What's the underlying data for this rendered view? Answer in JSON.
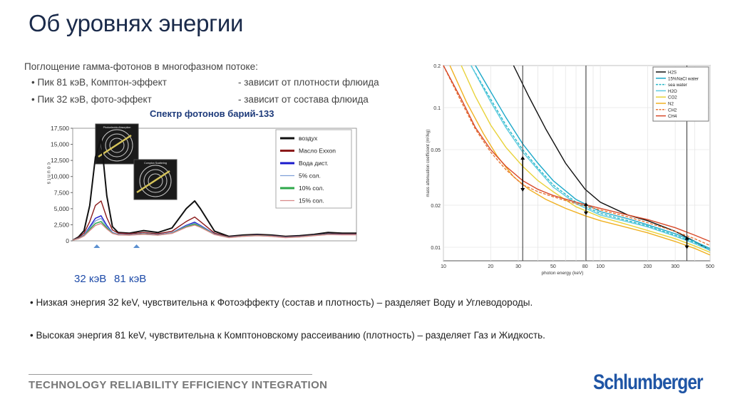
{
  "title": "Об уровнях энергии",
  "absorption": {
    "heading": "Поглощение гамма-фотонов в многофазном потоке:",
    "bullets": [
      {
        "left": "• Пик 81 кэВ, Комптон-эффект",
        "right": "- зависит от плотности флюида"
      },
      {
        "left": "• Пик 32 кэВ, фото-эффект",
        "right": "- зависит от состава флюида"
      }
    ]
  },
  "bullets": [
    "• Низкая энергия 32 keV, чувствительна к Фотоэффекту (состав и плотность) – разделяет Воду и Углеводороды.",
    "• Высокая энергия 81 keV, чувствительна к Комптоновскому рассеиванию (плотность) – разделяет Газ и Жидкость."
  ],
  "energy_labels": [
    "32 кэВ",
    "81 кэВ"
  ],
  "footer": "TECHNOLOGY RELIABILITY EFFICIENCY INTEGRATION",
  "logo": "Schlumberger",
  "chart_data": [
    {
      "type": "line",
      "title": "Спектр фотонов барий-133",
      "ylabel": "c o u n t s",
      "y_ticks": [
        "0",
        "2,500",
        "5,000",
        "7,500",
        "10,000",
        "12,500",
        "15,000",
        "17,500"
      ],
      "ylim": [
        0,
        17500
      ],
      "inset_labels": [
        "Photoelectric Absorption",
        "Compton Scattering"
      ],
      "legend": [
        {
          "name": "воздух",
          "color": "#111111"
        },
        {
          "name": "Масло Exxon",
          "color": "#8b1a1a"
        },
        {
          "name": "Вода дист.",
          "color": "#1a1acc"
        },
        {
          "name": "5% сол.",
          "color": "#7fa0d8"
        },
        {
          "name": "10% сол.",
          "color": "#2ea84a"
        },
        {
          "name": "15% сол.",
          "color": "#d98888"
        }
      ],
      "x": [
        0,
        2,
        4,
        6,
        8,
        10,
        12,
        14,
        16,
        20,
        25,
        30,
        35,
        40,
        43,
        45,
        50,
        55,
        60,
        65,
        70,
        75,
        80,
        85,
        90,
        95,
        100
      ],
      "series": [
        {
          "name": "воздух",
          "values": [
            100,
            600,
            1600,
            5500,
            13000,
            16000,
            7000,
            2200,
            1300,
            1200,
            1600,
            1300,
            2000,
            5000,
            6200,
            5000,
            1500,
            700,
            900,
            1000,
            900,
            700,
            800,
            1000,
            1300,
            1200,
            1200
          ]
        },
        {
          "name": "Масло Exxon",
          "values": [
            100,
            500,
            1200,
            3000,
            5500,
            6200,
            3600,
            1700,
            1200,
            1100,
            1300,
            1100,
            1500,
            3000,
            3700,
            3000,
            1200,
            600,
            800,
            900,
            800,
            600,
            700,
            900,
            1100,
            1050,
            1050
          ]
        },
        {
          "name": "Вода дист.",
          "values": [
            100,
            400,
            900,
            2200,
            3500,
            3900,
            2400,
            1300,
            1000,
            950,
            1100,
            950,
            1250,
            2400,
            2900,
            2400,
            1050,
            550,
            750,
            850,
            750,
            550,
            650,
            850,
            1050,
            1000,
            1000
          ]
        },
        {
          "name": "5% сол.",
          "values": [
            100,
            380,
            850,
            2000,
            3100,
            3500,
            2200,
            1250,
            980,
            930,
            1080,
            930,
            1220,
            2300,
            2750,
            2300,
            1030,
            540,
            740,
            840,
            740,
            540,
            640,
            840,
            1030,
            980,
            980
          ]
        },
        {
          "name": "10% сол.",
          "values": [
            100,
            350,
            800,
            1800,
            2700,
            3000,
            2000,
            1200,
            950,
            900,
            1050,
            900,
            1180,
            2200,
            2600,
            2200,
            1000,
            520,
            720,
            820,
            720,
            520,
            620,
            820,
            1000,
            960,
            960
          ]
        },
        {
          "name": "15% сол.",
          "values": [
            100,
            320,
            750,
            1600,
            2400,
            2700,
            1850,
            1150,
            920,
            880,
            1020,
            880,
            1150,
            2100,
            2450,
            2100,
            980,
            500,
            700,
            800,
            700,
            500,
            600,
            800,
            980,
            940,
            940
          ]
        }
      ]
    },
    {
      "type": "line",
      "xlabel": "photon energy (keV)",
      "ylabel": "mass attenuation coefficient (m²/kg)",
      "log_x": true,
      "log_y": true,
      "x_ticks": [
        10,
        20,
        30,
        40,
        50,
        60,
        70,
        80,
        90,
        100,
        200,
        300,
        400,
        500
      ],
      "x_tick_labels": [
        "10",
        "20",
        "30",
        "50",
        "80",
        "100",
        "200",
        "300",
        "500"
      ],
      "y_tick_labels": [
        "0.2",
        "0.1",
        "0.05",
        "0.02",
        "0.01"
      ],
      "y_ticks": [
        0.2,
        0.1,
        0.05,
        0.02,
        0.01
      ],
      "xlim": [
        10,
        500
      ],
      "ylim": [
        0.008,
        0.2
      ],
      "vertical_lines": [
        32,
        81,
        356
      ],
      "arrows": [
        {
          "x": 32,
          "y_from": 0.025,
          "y_to": 0.045
        },
        {
          "x": 81,
          "y_from": 0.017,
          "y_to": 0.021
        },
        {
          "x": 356,
          "y_from": 0.0097,
          "y_to": 0.012
        }
      ],
      "legend": [
        {
          "name": "H2S",
          "color": "#111111"
        },
        {
          "name": "15%NaCl water",
          "color": "#1aa7c8"
        },
        {
          "name": "sea water",
          "color": "#28b8c8",
          "dash": true
        },
        {
          "name": "H2O",
          "color": "#5ecbe0"
        },
        {
          "name": "CO2",
          "color": "#e8d23a"
        },
        {
          "name": "N2",
          "color": "#f0b020"
        },
        {
          "name": "CH2",
          "color": "#e87838",
          "dash": true
        },
        {
          "name": "CH4",
          "color": "#d84a2a"
        }
      ],
      "series": [
        {
          "name": "H2S",
          "x": [
            28,
            35,
            45,
            60,
            80,
            100,
            150,
            200,
            300,
            400,
            500
          ],
          "values": [
            0.2,
            0.12,
            0.07,
            0.04,
            0.026,
            0.021,
            0.017,
            0.0155,
            0.013,
            0.011,
            0.0095
          ]
        },
        {
          "name": "15%NaCl water",
          "x": [
            16,
            20,
            25,
            32,
            40,
            50,
            70,
            100,
            150,
            200,
            300,
            400,
            500
          ],
          "values": [
            0.2,
            0.13,
            0.085,
            0.055,
            0.04,
            0.03,
            0.022,
            0.018,
            0.016,
            0.0145,
            0.0125,
            0.011,
            0.0098
          ]
        },
        {
          "name": "sea water",
          "x": [
            15,
            20,
            25,
            32,
            40,
            50,
            70,
            100,
            150,
            200,
            300,
            400,
            500
          ],
          "values": [
            0.2,
            0.115,
            0.075,
            0.05,
            0.037,
            0.028,
            0.021,
            0.0175,
            0.0155,
            0.0142,
            0.0122,
            0.0108,
            0.0096
          ]
        },
        {
          "name": "H2O",
          "x": [
            15,
            20,
            25,
            32,
            40,
            50,
            70,
            100,
            150,
            200,
            300,
            400,
            500
          ],
          "values": [
            0.2,
            0.11,
            0.072,
            0.048,
            0.036,
            0.027,
            0.0205,
            0.017,
            0.0152,
            0.014,
            0.012,
            0.0106,
            0.0095
          ]
        },
        {
          "name": "CO2",
          "x": [
            13,
            16,
            20,
            25,
            32,
            40,
            50,
            70,
            100,
            150,
            200,
            300,
            400,
            500
          ],
          "values": [
            0.2,
            0.12,
            0.075,
            0.052,
            0.038,
            0.03,
            0.025,
            0.0195,
            0.0165,
            0.0145,
            0.0132,
            0.0115,
            0.0102,
            0.0092
          ]
        },
        {
          "name": "N2",
          "x": [
            11,
            14,
            18,
            22,
            28,
            35,
            45,
            60,
            80,
            100,
            150,
            200,
            300,
            400,
            500
          ],
          "values": [
            0.2,
            0.11,
            0.065,
            0.045,
            0.032,
            0.026,
            0.022,
            0.019,
            0.0168,
            0.0155,
            0.0138,
            0.0127,
            0.011,
            0.0098,
            0.0088
          ]
        },
        {
          "name": "CH2",
          "x": [
            10,
            13,
            16,
            20,
            25,
            32,
            40,
            50,
            70,
            100,
            150,
            200,
            300,
            400,
            500
          ],
          "values": [
            0.2,
            0.11,
            0.07,
            0.048,
            0.036,
            0.028,
            0.025,
            0.023,
            0.0205,
            0.0185,
            0.0165,
            0.015,
            0.013,
            0.0115,
            0.0103
          ]
        },
        {
          "name": "CH4",
          "x": [
            10,
            13,
            16,
            20,
            25,
            32,
            40,
            50,
            70,
            100,
            150,
            200,
            300,
            400,
            500
          ],
          "values": [
            0.2,
            0.115,
            0.072,
            0.05,
            0.038,
            0.03,
            0.026,
            0.0235,
            0.021,
            0.019,
            0.017,
            0.0158,
            0.0138,
            0.0122,
            0.011
          ]
        }
      ]
    }
  ]
}
